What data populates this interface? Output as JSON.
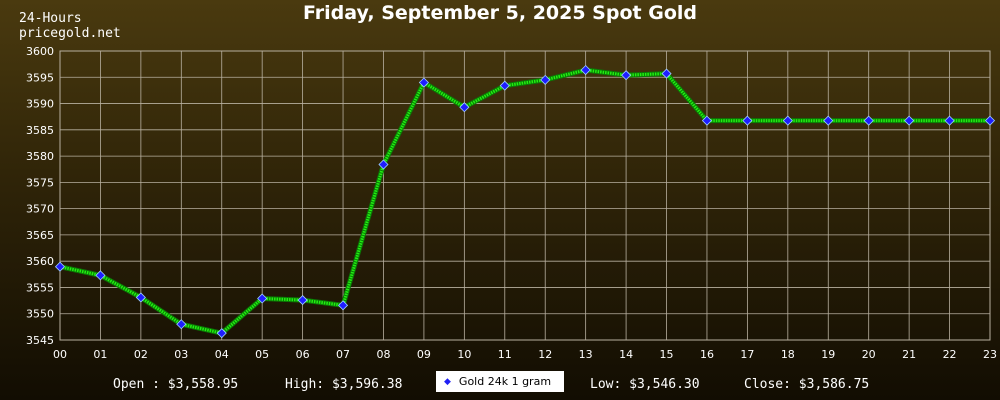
{
  "header": {
    "title": "Friday, September 5, 2025 Spot Gold",
    "brand_line1": "24-Hours",
    "brand_line2": "pricegold.net"
  },
  "footer": {
    "open": "Open : $3,558.95",
    "high": "High: $3,596.38",
    "low": "Low: $3,546.30",
    "close": "Close: $3,586.75",
    "legend_label": "Gold 24k 1 gram"
  },
  "colors": {
    "line": "#22ee11",
    "marker_fill": "#1e1eff",
    "grid": "#b8b0a0",
    "axis_text": "#ffffff"
  },
  "chart_data": {
    "type": "line",
    "title": "Friday, September 5, 2025 Spot Gold",
    "xlabel": "",
    "ylabel": "",
    "categories": [
      "00",
      "01",
      "02",
      "03",
      "04",
      "05",
      "06",
      "07",
      "08",
      "09",
      "10",
      "11",
      "12",
      "13",
      "14",
      "15",
      "16",
      "17",
      "18",
      "19",
      "20",
      "21",
      "22",
      "23"
    ],
    "ylim": [
      3545,
      3600
    ],
    "yticks": [
      3545,
      3550,
      3555,
      3560,
      3565,
      3570,
      3575,
      3580,
      3585,
      3590,
      3595,
      3600
    ],
    "grid": true,
    "legend": "bottom-center",
    "series": [
      {
        "name": "Gold 24k 1 gram",
        "values": [
          3558.95,
          3557.3,
          3553.1,
          3548.0,
          3546.3,
          3552.9,
          3552.6,
          3551.6,
          3578.4,
          3594.0,
          3589.3,
          3593.4,
          3594.5,
          3596.38,
          3595.4,
          3595.7,
          3586.75,
          3586.75,
          3586.75,
          3586.75,
          3586.75,
          3586.75,
          3586.75,
          3586.75
        ]
      }
    ]
  }
}
